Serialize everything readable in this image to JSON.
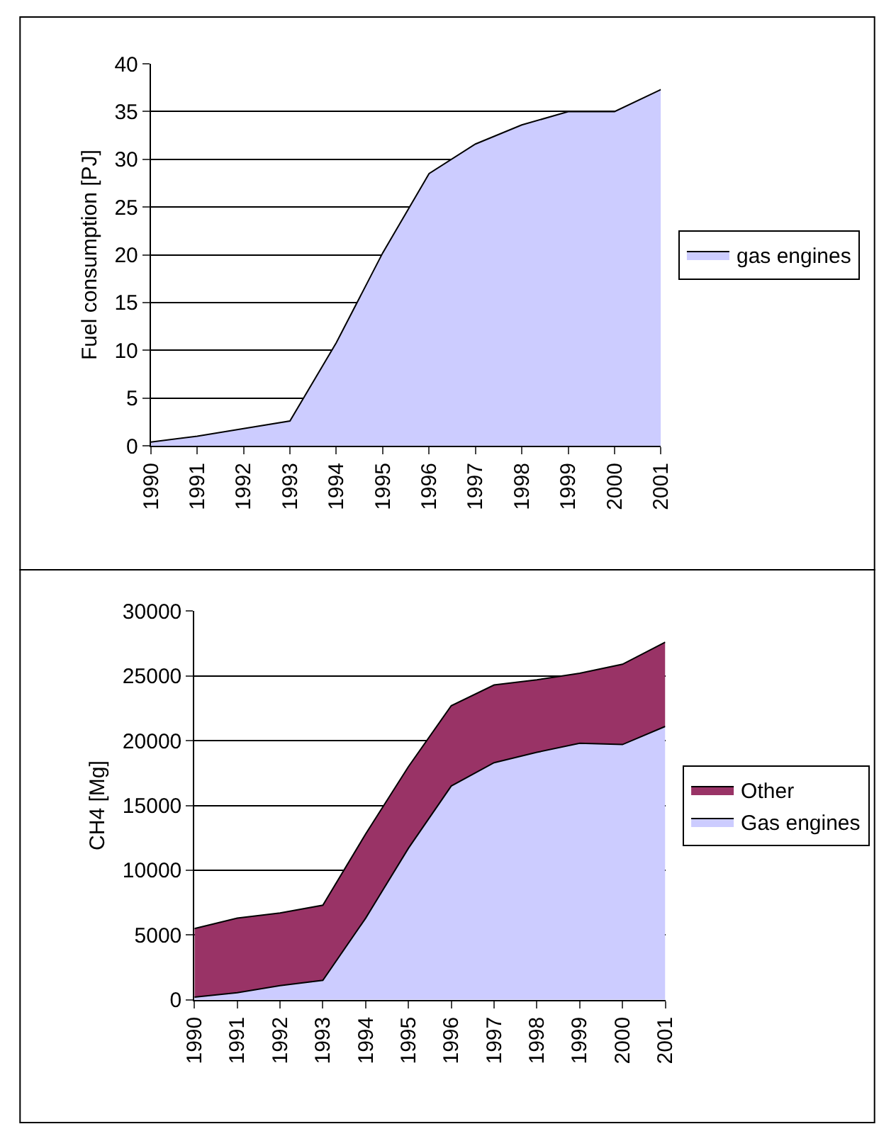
{
  "chart_data": [
    {
      "type": "area",
      "ylabel": "Fuel consumption [PJ]",
      "categories": [
        "1990",
        "1991",
        "1992",
        "1993",
        "1994",
        "1995",
        "1996",
        "1997",
        "1998",
        "1999",
        "2000",
        "2001"
      ],
      "series": [
        {
          "name": "gas engines",
          "color": "#ccccff",
          "values": [
            0.4,
            1.0,
            1.8,
            2.6,
            10.8,
            20.2,
            28.5,
            31.6,
            33.6,
            35.0,
            35.0,
            37.3
          ]
        }
      ],
      "ylim": [
        0,
        40
      ],
      "yticks": [
        0,
        5,
        10,
        15,
        20,
        25,
        30,
        35,
        40
      ],
      "grid": "y",
      "legend": "right"
    },
    {
      "type": "area",
      "stacked": true,
      "ylabel": "CH4 [Mg]",
      "categories": [
        "1990",
        "1991",
        "1992",
        "1993",
        "1994",
        "1995",
        "1996",
        "1997",
        "1998",
        "1999",
        "2000",
        "2001"
      ],
      "series": [
        {
          "name": "Gas engines",
          "color": "#ccccff",
          "values": [
            200,
            550,
            1100,
            1500,
            6300,
            11700,
            16500,
            18300,
            19100,
            19800,
            19700,
            21100
          ]
        },
        {
          "name": "Other",
          "color": "#993366",
          "values": [
            5300,
            5750,
            5600,
            5800,
            6500,
            6300,
            6200,
            6000,
            5600,
            5400,
            6200,
            6500
          ]
        }
      ],
      "ylim": [
        0,
        30000
      ],
      "yticks": [
        0,
        5000,
        10000,
        15000,
        20000,
        25000,
        30000
      ],
      "grid": "y",
      "legend": "right"
    }
  ]
}
